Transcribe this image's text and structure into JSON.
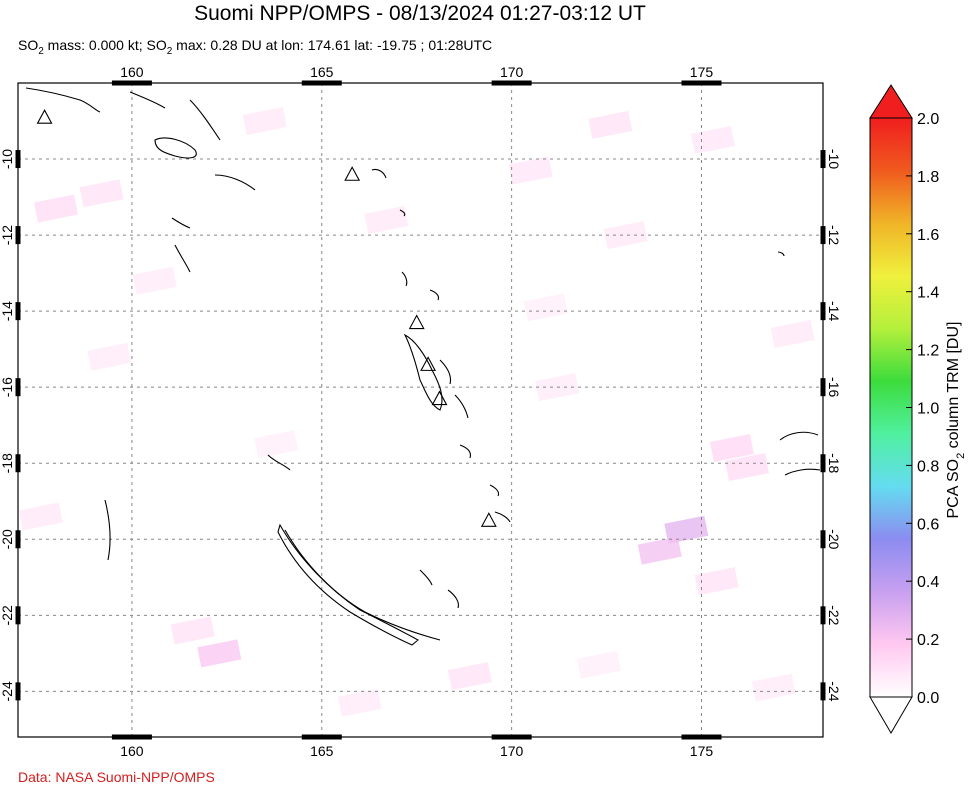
{
  "title": "Suomi NPP/OMPS - 08/13/2024 01:27-03:12 UT",
  "subtitle": {
    "t1": "SO",
    "s1": "2",
    "t2": " mass: 0.000 kt; SO",
    "s2": "2",
    "t3": " max: 0.28 DU at lon: 174.61 lat: -19.75 ; 01:28UTC"
  },
  "credit": "Data: NASA Suomi-NPP/OMPS",
  "colorbar": {
    "label_pre": "PCA SO",
    "label_sub": "2",
    "label_post": " column TRM [DU]",
    "ticks": [
      "0.0",
      "0.2",
      "0.4",
      "0.6",
      "0.8",
      "1.0",
      "1.2",
      "1.4",
      "1.6",
      "1.8",
      "2.0"
    ],
    "range": [
      0.0,
      2.0
    ],
    "colors": [
      "#ffffff",
      "#ffc8f0",
      "#c8a0f0",
      "#8c8cf0",
      "#64dcf0",
      "#50f0a0",
      "#3cdc3c",
      "#b4f03c",
      "#f0f03c",
      "#f0b428",
      "#f05a1e",
      "#f01e1e"
    ]
  },
  "chart_data": {
    "type": "heatmap",
    "description_map": "Map of SO2 column over the southwest Pacific (Vanuatu, New Caledonia, Solomon Islands, Fiji)",
    "xlim": [
      157,
      178.2
    ],
    "ylim": [
      -25.2,
      -8.0
    ],
    "x_ticks": [
      160,
      165,
      170,
      175
    ],
    "y_ticks": [
      -10,
      -12,
      -14,
      -16,
      -18,
      -20,
      -22,
      -24
    ],
    "grid": true,
    "max_value": {
      "value": 0.28,
      "lon": 174.61,
      "lat": -19.75
    },
    "volcanoes": [
      {
        "lon": 157.7,
        "lat": -8.9
      },
      {
        "lon": 165.8,
        "lat": -10.4
      },
      {
        "lon": 167.5,
        "lat": -14.3
      },
      {
        "lon": 167.8,
        "lat": -15.4
      },
      {
        "lon": 168.1,
        "lat": -16.3
      },
      {
        "lon": 169.4,
        "lat": -19.5
      }
    ],
    "cells": [
      {
        "lon": 158.0,
        "lat": -11.3,
        "value": 0.12
      },
      {
        "lon": 159.2,
        "lat": -10.9,
        "value": 0.1
      },
      {
        "lon": 163.5,
        "lat": -9.0,
        "value": 0.08
      },
      {
        "lon": 166.7,
        "lat": -11.6,
        "value": 0.08
      },
      {
        "lon": 170.5,
        "lat": -10.3,
        "value": 0.09
      },
      {
        "lon": 172.6,
        "lat": -9.1,
        "value": 0.1
      },
      {
        "lon": 175.3,
        "lat": -9.5,
        "value": 0.09
      },
      {
        "lon": 173.0,
        "lat": -12.0,
        "value": 0.08
      },
      {
        "lon": 175.8,
        "lat": -17.6,
        "value": 0.14
      },
      {
        "lon": 176.2,
        "lat": -18.1,
        "value": 0.12
      },
      {
        "lon": 174.6,
        "lat": -19.75,
        "value": 0.28
      },
      {
        "lon": 173.9,
        "lat": -20.3,
        "value": 0.22
      },
      {
        "lon": 175.4,
        "lat": -21.1,
        "value": 0.1
      },
      {
        "lon": 162.3,
        "lat": -23.0,
        "value": 0.2
      },
      {
        "lon": 161.6,
        "lat": -22.4,
        "value": 0.1
      },
      {
        "lon": 168.9,
        "lat": -23.6,
        "value": 0.1
      },
      {
        "lon": 157.6,
        "lat": -19.4,
        "value": 0.08
      },
      {
        "lon": 159.4,
        "lat": -15.2,
        "value": 0.07
      },
      {
        "lon": 163.8,
        "lat": -17.5,
        "value": 0.06
      },
      {
        "lon": 171.2,
        "lat": -16.0,
        "value": 0.07
      },
      {
        "lon": 177.4,
        "lat": -14.6,
        "value": 0.08
      },
      {
        "lon": 166.0,
        "lat": -24.3,
        "value": 0.07
      },
      {
        "lon": 172.3,
        "lat": -23.3,
        "value": 0.06
      },
      {
        "lon": 160.6,
        "lat": -13.2,
        "value": 0.07
      },
      {
        "lon": 170.9,
        "lat": -13.9,
        "value": 0.06
      },
      {
        "lon": 176.9,
        "lat": -23.9,
        "value": 0.07
      }
    ]
  }
}
